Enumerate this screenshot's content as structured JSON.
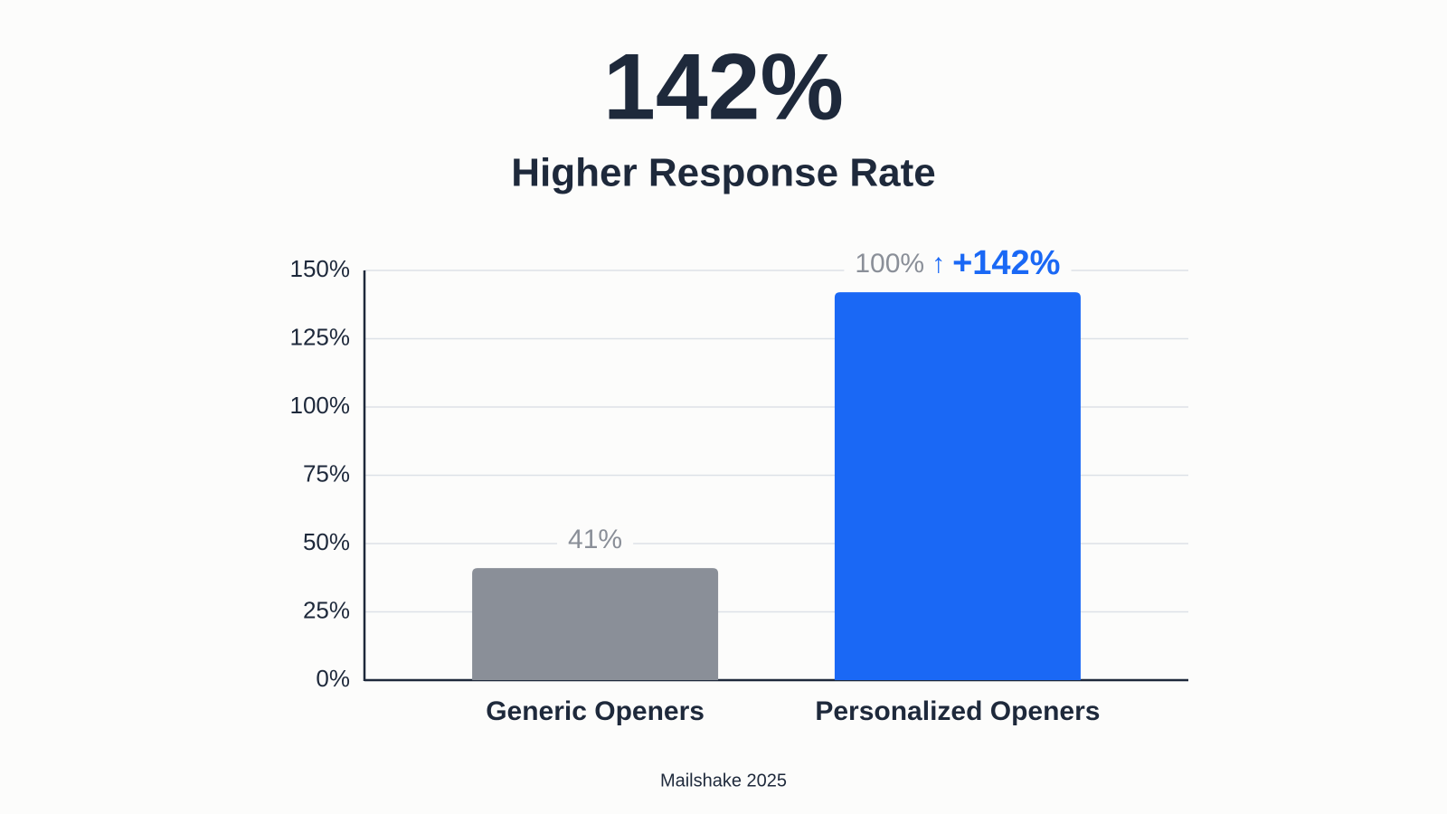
{
  "chart_data": {
    "type": "bar",
    "headline": "142%",
    "title": "Higher Response Rate",
    "source": "Mailshake 2025",
    "categories": [
      "Generic Openers",
      "Personalized Openers"
    ],
    "values": [
      41,
      142
    ],
    "value_labels": [
      "41%",
      "+142%"
    ],
    "colors": [
      "#8a8f98",
      "#1a68f5"
    ],
    "annotations": [
      "100%",
      "↑"
    ],
    "ylim": [
      0,
      150
    ],
    "yticks": [
      {
        "value": 0,
        "label": "0%"
      },
      {
        "value": 25,
        "label": "25%"
      },
      {
        "value": 50,
        "label": "50%"
      },
      {
        "value": 75,
        "label": "75%"
      },
      {
        "value": 100,
        "label": "100%"
      },
      {
        "value": 125,
        "label": "125%"
      },
      {
        "value": 150,
        "label": "150%"
      }
    ],
    "grid": true
  }
}
